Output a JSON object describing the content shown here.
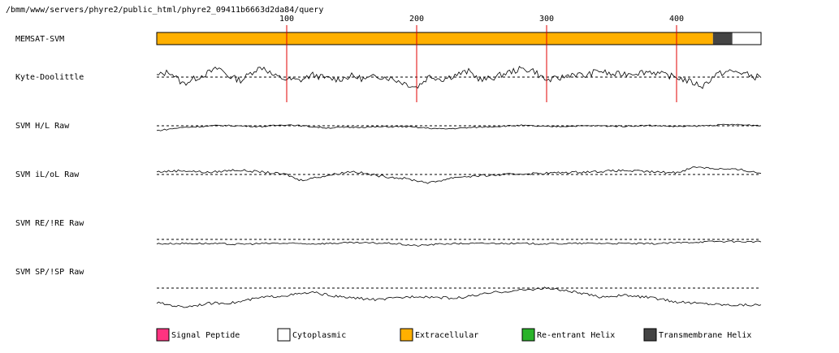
{
  "page": {
    "path": "/bmm/www/servers/phyre2/public_html/phyre2_09411b6663d2da84/query"
  },
  "chart_data": {
    "type": "line",
    "sequence_length": 465,
    "x_ticks": [
      100,
      200,
      300,
      400
    ],
    "memsat": {
      "label": "MEMSAT-SVM",
      "segments": [
        {
          "start": 1,
          "end": 428,
          "type": "Extracellular"
        },
        {
          "start": 429,
          "end": 443,
          "type": "Transmembrane Helix"
        },
        {
          "start": 444,
          "end": 465,
          "type": "Cytoplasmic"
        }
      ]
    },
    "tracks": [
      {
        "name": "Kyte-Doolittle",
        "amp": 14,
        "points": [
          [
            0,
            0.1
          ],
          [
            10,
            0.5
          ],
          [
            20,
            -0.6
          ],
          [
            30,
            -0.1
          ],
          [
            40,
            0.4
          ],
          [
            48,
            0.8
          ],
          [
            55,
            0.1
          ],
          [
            65,
            -0.3
          ],
          [
            75,
            0.6
          ],
          [
            82,
            0.9
          ],
          [
            90,
            0.1
          ],
          [
            100,
            -0.2
          ],
          [
            110,
            -0.3
          ],
          [
            120,
            0.2
          ],
          [
            130,
            -0.1
          ],
          [
            140,
            -0.2
          ],
          [
            150,
            0.1
          ],
          [
            160,
            -0.2
          ],
          [
            170,
            0.1
          ],
          [
            180,
            -0.1
          ],
          [
            190,
            -0.5
          ],
          [
            200,
            -0.9
          ],
          [
            210,
            0.1
          ],
          [
            220,
            -0.2
          ],
          [
            230,
            0.2
          ],
          [
            240,
            0.5
          ],
          [
            250,
            -0.3
          ],
          [
            260,
            0.0
          ],
          [
            270,
            0.4
          ],
          [
            280,
            0.7
          ],
          [
            290,
            0.6
          ],
          [
            295,
            0.1
          ],
          [
            300,
            -0.3
          ],
          [
            310,
            -0.1
          ],
          [
            320,
            0.3
          ],
          [
            330,
            0.1
          ],
          [
            340,
            0.6
          ],
          [
            350,
            0.2
          ],
          [
            360,
            0.3
          ],
          [
            370,
            0.4
          ],
          [
            380,
            0.5
          ],
          [
            390,
            0.2
          ],
          [
            400,
            0.0
          ],
          [
            410,
            -0.4
          ],
          [
            420,
            -0.8
          ],
          [
            430,
            0.2
          ],
          [
            440,
            0.5
          ],
          [
            450,
            0.4
          ],
          [
            460,
            0.0
          ],
          [
            465,
            0.1
          ]
        ]
      },
      {
        "name": "SVM H/L Raw",
        "amp": 5,
        "points": [
          [
            0,
            -1.2
          ],
          [
            20,
            -0.4
          ],
          [
            50,
            0.1
          ],
          [
            80,
            -0.2
          ],
          [
            100,
            0.3
          ],
          [
            130,
            -0.5
          ],
          [
            160,
            -0.3
          ],
          [
            190,
            -0.2
          ],
          [
            220,
            -0.8
          ],
          [
            250,
            -0.3
          ],
          [
            280,
            0.1
          ],
          [
            300,
            -0.2
          ],
          [
            330,
            0.0
          ],
          [
            360,
            -0.1
          ],
          [
            380,
            0.1
          ],
          [
            400,
            -0.2
          ],
          [
            420,
            0.0
          ],
          [
            440,
            0.3
          ],
          [
            465,
            0.1
          ]
        ]
      },
      {
        "name": "SVM iL/oL Raw",
        "amp": 8,
        "points": [
          [
            0,
            0.4
          ],
          [
            20,
            0.6
          ],
          [
            40,
            0.3
          ],
          [
            60,
            0.7
          ],
          [
            80,
            0.4
          ],
          [
            100,
            0.0
          ],
          [
            110,
            -0.9
          ],
          [
            130,
            -0.2
          ],
          [
            150,
            0.5
          ],
          [
            170,
            -0.2
          ],
          [
            190,
            -0.6
          ],
          [
            210,
            -1.3
          ],
          [
            230,
            -0.4
          ],
          [
            250,
            -0.2
          ],
          [
            280,
            0.1
          ],
          [
            300,
            0.2
          ],
          [
            330,
            0.4
          ],
          [
            360,
            0.6
          ],
          [
            380,
            0.4
          ],
          [
            400,
            0.3
          ],
          [
            415,
            1.2
          ],
          [
            430,
            0.9
          ],
          [
            450,
            0.7
          ],
          [
            465,
            0.2
          ]
        ]
      },
      {
        "name": "SVM RE/!RE Raw",
        "amp": 6,
        "points": [
          [
            0,
            -0.9
          ],
          [
            30,
            -0.8
          ],
          [
            60,
            -1.0
          ],
          [
            90,
            -0.8
          ],
          [
            120,
            -0.9
          ],
          [
            150,
            -0.7
          ],
          [
            180,
            -0.8
          ],
          [
            200,
            -1.3
          ],
          [
            220,
            -0.9
          ],
          [
            260,
            -0.8
          ],
          [
            300,
            -0.9
          ],
          [
            340,
            -0.8
          ],
          [
            380,
            -0.9
          ],
          [
            410,
            -0.6
          ],
          [
            430,
            -0.4
          ],
          [
            465,
            -0.5
          ]
        ]
      },
      {
        "name": "SVM SP/!SP Raw",
        "amp": 9,
        "points": [
          [
            0,
            -2.0
          ],
          [
            20,
            -2.6
          ],
          [
            40,
            -2.1
          ],
          [
            60,
            -2.0
          ],
          [
            80,
            -1.3
          ],
          [
            100,
            -1.0
          ],
          [
            120,
            -0.6
          ],
          [
            140,
            -1.2
          ],
          [
            170,
            -1.6
          ],
          [
            200,
            -1.1
          ],
          [
            230,
            -1.4
          ],
          [
            260,
            -0.6
          ],
          [
            300,
            0.0
          ],
          [
            320,
            -0.5
          ],
          [
            340,
            -1.2
          ],
          [
            360,
            -1.0
          ],
          [
            380,
            -1.3
          ],
          [
            400,
            -1.9
          ],
          [
            420,
            -2.1
          ],
          [
            440,
            -2.3
          ],
          [
            465,
            -2.3
          ]
        ]
      }
    ],
    "legend": [
      {
        "label": "Signal Peptide",
        "color": "#ff3380"
      },
      {
        "label": "Cytoplasmic",
        "color": "#ffffff"
      },
      {
        "label": "Extracellular",
        "color": "#ffb000"
      },
      {
        "label": "Re-entrant Helix",
        "color": "#2ab32a"
      },
      {
        "label": "Transmembrane Helix",
        "color": "#444444"
      }
    ]
  }
}
